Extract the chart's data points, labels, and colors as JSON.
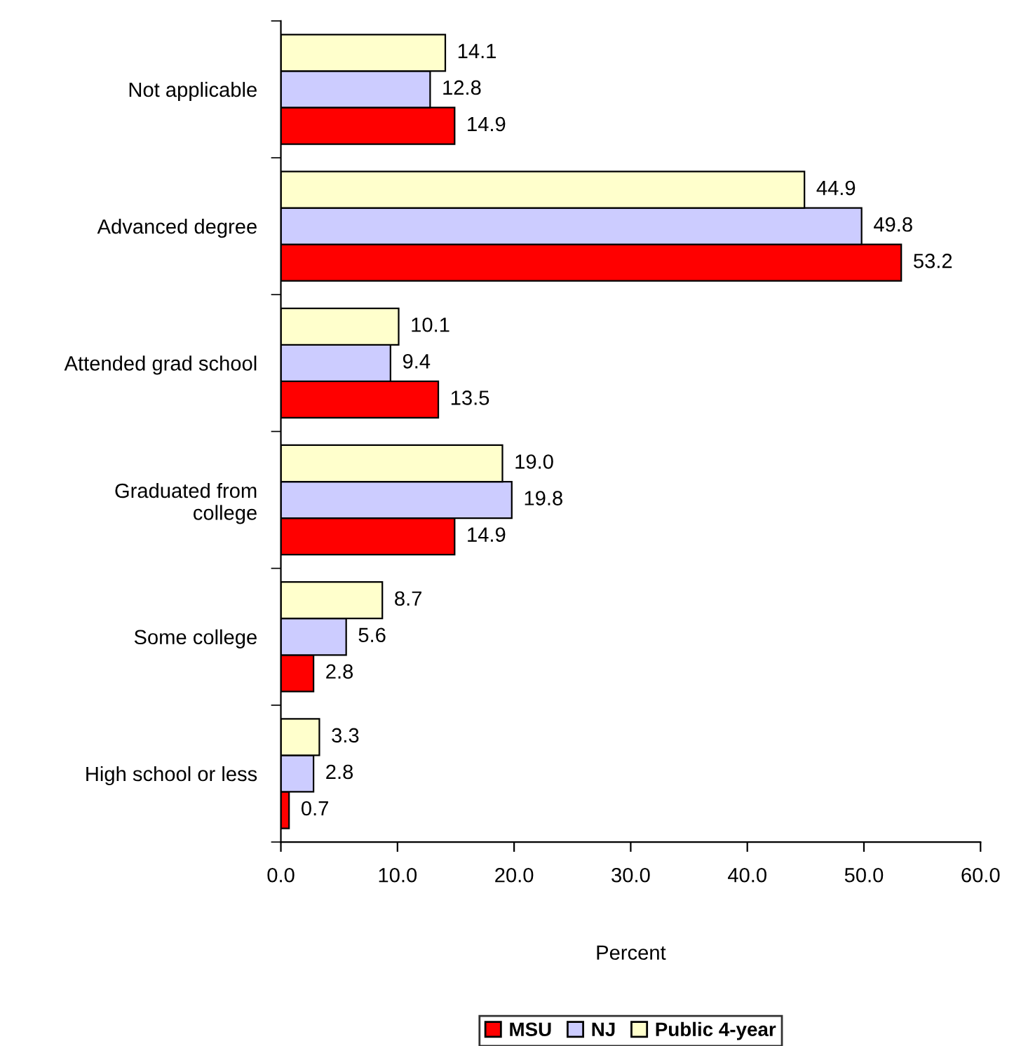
{
  "chart_data": {
    "type": "bar",
    "orientation": "horizontal",
    "xlabel": "Percent",
    "categories": [
      "Not applicable",
      "Advanced degree",
      "Attended grad school",
      "Graduated from\ncollege",
      "Some college",
      "High school or less"
    ],
    "series": [
      {
        "name": "MSU",
        "color": "#ff0000",
        "values": [
          14.9,
          53.2,
          13.5,
          14.9,
          2.8,
          0.7
        ],
        "value_labels": [
          "14.9",
          "53.2",
          "13.5",
          "14.9",
          "2.8",
          "0.7"
        ]
      },
      {
        "name": "NJ",
        "color": "#ccccff",
        "values": [
          12.8,
          49.8,
          9.4,
          19.8,
          5.6,
          2.8
        ],
        "value_labels": [
          "12.8",
          "49.8",
          "9.4",
          "19.8",
          "5.6",
          "2.8"
        ]
      },
      {
        "name": "Public 4-year",
        "color": "#ffffcc",
        "values": [
          14.1,
          44.9,
          10.1,
          19.0,
          8.7,
          3.3
        ],
        "value_labels": [
          "14.1",
          "44.9",
          "10.1",
          "19.0",
          "8.7",
          "3.3"
        ]
      }
    ],
    "xlim": [
      0,
      60
    ],
    "xticks": [
      {
        "value": 0,
        "label": "0.0"
      },
      {
        "value": 10,
        "label": "10.0"
      },
      {
        "value": 20,
        "label": "20.0"
      },
      {
        "value": 30,
        "label": "30.0"
      },
      {
        "value": 40,
        "label": "40.0"
      },
      {
        "value": 50,
        "label": "50.0"
      },
      {
        "value": 60,
        "label": "60.0"
      }
    ],
    "grid": false,
    "legend": "bottom"
  }
}
